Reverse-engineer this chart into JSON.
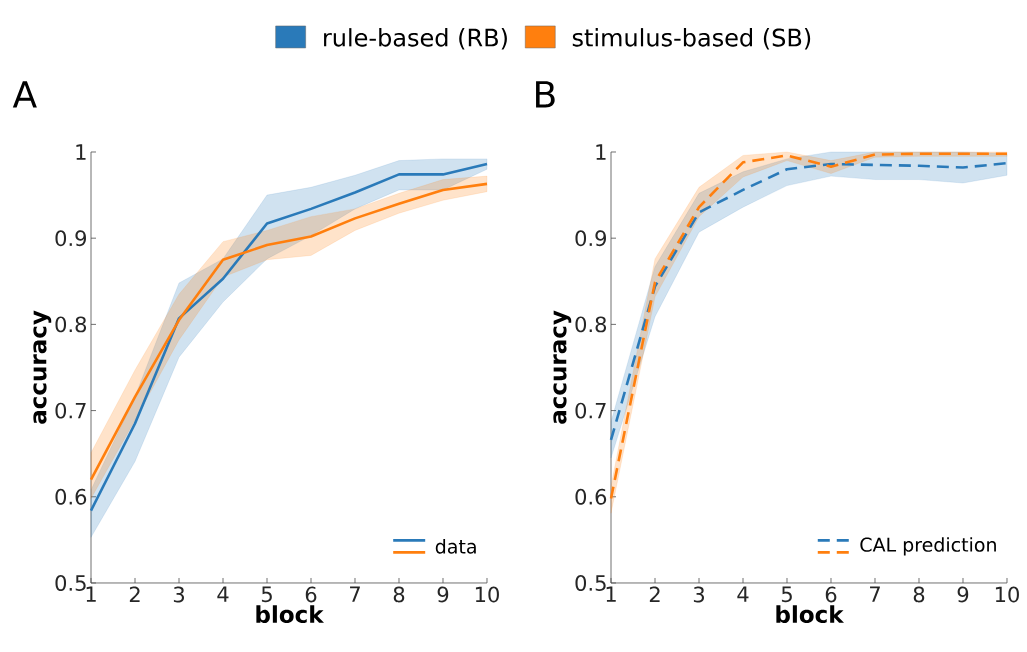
{
  "chart_data": [
    {
      "type": "line",
      "title": "A",
      "xlabel": "block",
      "ylabel": "accuracy",
      "x": [
        1,
        2,
        3,
        4,
        5,
        6,
        7,
        8,
        9,
        10
      ],
      "xlim": [
        1,
        10
      ],
      "ylim": [
        0.5,
        1
      ],
      "xticks": [
        1,
        2,
        3,
        4,
        5,
        6,
        7,
        8,
        9,
        10
      ],
      "yticks": [
        0.5,
        0.6,
        0.7,
        0.8,
        0.9,
        1
      ],
      "legend": "top",
      "line_style": "solid",
      "annotations": [
        "data"
      ],
      "series": [
        {
          "name": "rule-based (RB)",
          "color": "#2a7ab9",
          "values": [
            0.584,
            0.685,
            0.807,
            0.853,
            0.917,
            0.934,
            0.953,
            0.974,
            0.974,
            0.986
          ],
          "lower": [
            0.553,
            0.641,
            0.762,
            0.826,
            0.876,
            0.903,
            0.934,
            0.956,
            0.956,
            0.98
          ],
          "upper": [
            0.608,
            0.716,
            0.848,
            0.876,
            0.95,
            0.959,
            0.973,
            0.99,
            0.992,
            0.992
          ]
        },
        {
          "name": "stimulus-based (SB)",
          "color": "#ff7f0e",
          "values": [
            0.62,
            0.716,
            0.805,
            0.875,
            0.892,
            0.902,
            0.923,
            0.94,
            0.956,
            0.963
          ],
          "lower": [
            0.598,
            0.689,
            0.782,
            0.855,
            0.875,
            0.88,
            0.909,
            0.929,
            0.944,
            0.954
          ],
          "upper": [
            0.651,
            0.747,
            0.835,
            0.896,
            0.909,
            0.925,
            0.934,
            0.952,
            0.968,
            0.972
          ]
        }
      ]
    },
    {
      "type": "line",
      "title": "B",
      "xlabel": "block",
      "ylabel": "accuracy",
      "x": [
        1,
        2,
        3,
        4,
        5,
        6,
        7,
        8,
        9,
        10
      ],
      "xlim": [
        1,
        10
      ],
      "ylim": [
        0.5,
        1
      ],
      "xticks": [
        1,
        2,
        3,
        4,
        5,
        6,
        7,
        8,
        9,
        10
      ],
      "yticks": [
        0.5,
        0.6,
        0.7,
        0.8,
        0.9,
        1
      ],
      "line_style": "dashed",
      "annotations": [
        "CAL prediction"
      ],
      "series": [
        {
          "color": "#2a7ab9",
          "values": [
            0.666,
            0.844,
            0.93,
            0.956,
            0.98,
            0.986,
            0.985,
            0.984,
            0.982,
            0.987
          ],
          "lower": [
            0.645,
            0.809,
            0.907,
            0.936,
            0.961,
            0.972,
            0.968,
            0.968,
            0.964,
            0.973
          ],
          "upper": [
            0.687,
            0.867,
            0.952,
            0.977,
            0.992,
            1,
            1,
            1,
            1,
            0.998
          ]
        },
        {
          "color": "#ff7f0e",
          "values": [
            0.598,
            0.849,
            0.936,
            0.988,
            0.996,
            0.983,
            0.997,
            0.998,
            0.998,
            0.998
          ],
          "lower": [
            0.581,
            0.832,
            0.925,
            0.971,
            0.99,
            0.975,
            0.994,
            0.995,
            0.995,
            0.995
          ],
          "upper": [
            0.612,
            0.876,
            0.959,
            0.996,
            1,
            0.99,
            1,
            1,
            1,
            1
          ]
        }
      ]
    }
  ]
}
